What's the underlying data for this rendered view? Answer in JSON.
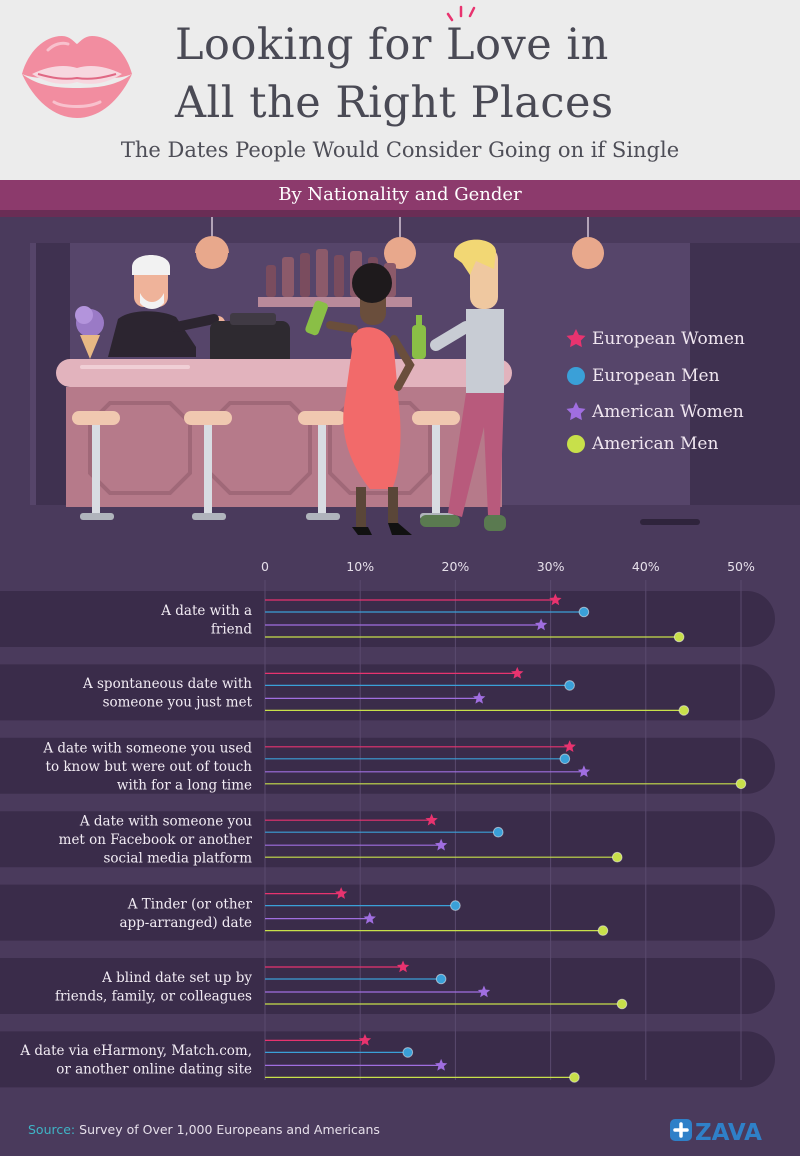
{
  "header": {
    "title_line1": "Looking for Love in",
    "title_line2": "All the Right Places",
    "subtitle": "The Dates People Would Consider Going on if Single"
  },
  "band": {
    "label": "By Nationality and Gender"
  },
  "legend": [
    {
      "label": "European Women",
      "color": "#e8336f",
      "marker": "star"
    },
    {
      "label": "European Men",
      "color": "#3aa0d8",
      "marker": "circle"
    },
    {
      "label": "American Women",
      "color": "#a06ee0",
      "marker": "star"
    },
    {
      "label": "American Men",
      "color": "#c8e04a",
      "marker": "circle"
    }
  ],
  "chart_data": {
    "type": "lollipop",
    "orientation": "horizontal",
    "x_ticks": [
      "0",
      "10%",
      "20%",
      "30%",
      "40%",
      "50%"
    ],
    "xlim": [
      0,
      50
    ],
    "categories": [
      [
        "A date with a",
        "friend"
      ],
      [
        "A spontaneous date with",
        "someone you just met"
      ],
      [
        "A date with someone you used",
        "to know but were out of touch",
        "with for a long time"
      ],
      [
        "A date with someone you",
        "met on Facebook or another",
        "social media platform"
      ],
      [
        "A Tinder (or other",
        "app-arranged) date"
      ],
      [
        "A blind date set up by",
        "friends, family, or colleagues"
      ],
      [
        "A date via eHarmony, Match.com,",
        "or another online dating site"
      ]
    ],
    "series": [
      {
        "name": "European Women",
        "color": "#e8336f",
        "marker": "star",
        "values": [
          30.5,
          26.5,
          32,
          17.5,
          8,
          14.5,
          10.5
        ]
      },
      {
        "name": "European Men",
        "color": "#3aa0d8",
        "marker": "circle",
        "values": [
          33.5,
          32,
          31.5,
          24.5,
          20,
          18.5,
          15
        ]
      },
      {
        "name": "American Women",
        "color": "#a06ee0",
        "marker": "star",
        "values": [
          29,
          22.5,
          33.5,
          18.5,
          11,
          23,
          18.5
        ]
      },
      {
        "name": "American Men",
        "color": "#c8e04a",
        "marker": "circle",
        "values": [
          43.5,
          44,
          50,
          37,
          35.5,
          37.5,
          32.5
        ]
      }
    ]
  },
  "footer": {
    "source_label": "Source:",
    "source_text": " Survey of Over 1,000 Europeans and Americans",
    "logo_text": "ZAVA"
  }
}
